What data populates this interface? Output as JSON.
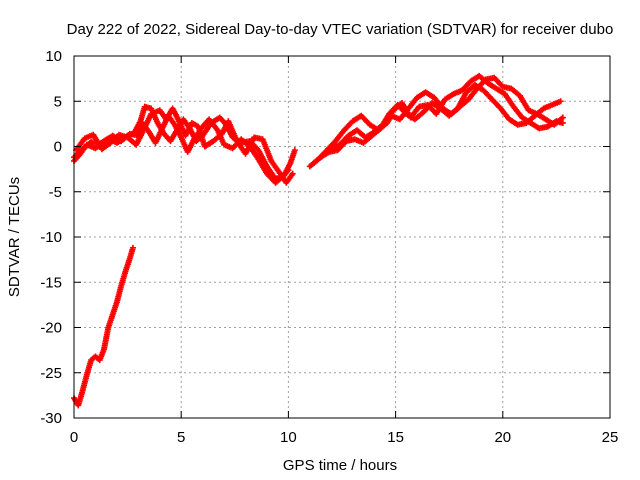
{
  "chart_data": {
    "type": "scatter",
    "title": "Day 222 of 2022, Sidereal Day-to-day VTEC variation (SDTVAR) for receiver dubo",
    "xlabel": "GPS time / hours",
    "ylabel": "SDTVAR / TECUs",
    "xlim": [
      0,
      25
    ],
    "ylim": [
      -30,
      10
    ],
    "x_ticks": [
      0,
      5,
      10,
      15,
      20,
      25
    ],
    "y_ticks": [
      -30,
      -25,
      -20,
      -15,
      -10,
      -5,
      0,
      5,
      10
    ],
    "grid": true,
    "series": [
      {
        "name": "SDTVAR",
        "color": "#ff0000",
        "marker": "+",
        "tracks": [
          [
            [
              0.0,
              -1.2
            ],
            [
              0.4,
              -0.3
            ],
            [
              0.8,
              0.5
            ],
            [
              1.2,
              0.3
            ],
            [
              1.6,
              0.9
            ],
            [
              2.0,
              0.4
            ],
            [
              2.4,
              1.0
            ],
            [
              2.8,
              1.5
            ],
            [
              3.1,
              2.8
            ],
            [
              3.3,
              4.4
            ],
            [
              3.6,
              4.2
            ],
            [
              3.9,
              2.6
            ],
            [
              4.2,
              1.4
            ],
            [
              4.5,
              0.6
            ],
            [
              4.8,
              1.8
            ],
            [
              5.1,
              3.0
            ],
            [
              5.4,
              2.0
            ],
            [
              5.7,
              0.6
            ],
            [
              6.0,
              1.2
            ],
            [
              6.4,
              2.6
            ],
            [
              6.8,
              3.2
            ],
            [
              7.1,
              2.4
            ],
            [
              7.4,
              1.0
            ],
            [
              7.8,
              0.4
            ],
            [
              8.2,
              0.6
            ],
            [
              8.6,
              -0.4
            ],
            [
              9.0,
              -2.2
            ],
            [
              9.4,
              -3.6
            ],
            [
              9.8,
              -3.2
            ],
            [
              10.1,
              -1.8
            ],
            [
              10.3,
              -0.4
            ]
          ],
          [
            [
              0.0,
              -1.6
            ],
            [
              0.3,
              -0.8
            ],
            [
              0.6,
              0.2
            ],
            [
              1.0,
              -0.2
            ],
            [
              1.4,
              0.5
            ],
            [
              1.8,
              1.2
            ],
            [
              2.2,
              0.6
            ],
            [
              2.6,
              1.4
            ],
            [
              3.0,
              1.2
            ],
            [
              3.2,
              2.6
            ],
            [
              3.5,
              1.6
            ],
            [
              3.8,
              0.4
            ],
            [
              4.1,
              1.9
            ],
            [
              4.4,
              3.4
            ],
            [
              4.7,
              2.4
            ],
            [
              5.0,
              1.0
            ],
            [
              5.3,
              -0.6
            ],
            [
              5.6,
              0.8
            ],
            [
              6.0,
              2.2
            ],
            [
              6.3,
              3.0
            ],
            [
              6.7,
              1.8
            ],
            [
              7.0,
              0.2
            ],
            [
              7.4,
              -0.2
            ],
            [
              7.8,
              0.8
            ],
            [
              8.2,
              0.0
            ],
            [
              8.6,
              -1.4
            ],
            [
              9.0,
              -3.0
            ],
            [
              9.4,
              -4.0
            ],
            [
              9.7,
              -3.4
            ],
            [
              10.0,
              -2.6
            ]
          ],
          [
            [
              0.1,
              -0.4
            ],
            [
              0.5,
              0.9
            ],
            [
              0.9,
              1.3
            ],
            [
              1.3,
              -0.3
            ],
            [
              1.7,
              0.4
            ],
            [
              2.1,
              1.3
            ],
            [
              2.5,
              1.0
            ],
            [
              2.9,
              0.2
            ],
            [
              3.2,
              1.6
            ],
            [
              3.6,
              3.6
            ],
            [
              4.0,
              4.0
            ],
            [
              4.3,
              3.0
            ],
            [
              4.6,
              4.2
            ],
            [
              4.9,
              2.8
            ],
            [
              5.2,
              1.2
            ],
            [
              5.5,
              2.6
            ],
            [
              5.8,
              2.2
            ],
            [
              6.1,
              0.0
            ],
            [
              6.5,
              0.6
            ],
            [
              6.9,
              1.4
            ],
            [
              7.2,
              2.8
            ],
            [
              7.6,
              0.6
            ],
            [
              8.0,
              -0.8
            ],
            [
              8.4,
              1.0
            ],
            [
              8.8,
              0.8
            ],
            [
              9.2,
              -1.6
            ],
            [
              9.5,
              -2.6
            ],
            [
              9.9,
              -4.0
            ],
            [
              10.2,
              -3.0
            ]
          ],
          [
            [
              11.0,
              -2.2
            ],
            [
              11.4,
              -1.4
            ],
            [
              11.8,
              -0.4
            ],
            [
              12.2,
              0.6
            ],
            [
              12.6,
              1.8
            ],
            [
              13.0,
              2.8
            ],
            [
              13.4,
              3.4
            ],
            [
              13.8,
              2.4
            ],
            [
              14.2,
              1.8
            ],
            [
              14.6,
              2.6
            ],
            [
              14.8,
              3.4
            ],
            [
              15.2,
              3.0
            ],
            [
              15.6,
              4.2
            ],
            [
              16.0,
              5.4
            ],
            [
              16.4,
              6.0
            ],
            [
              16.8,
              5.4
            ],
            [
              17.2,
              4.2
            ],
            [
              17.6,
              3.6
            ],
            [
              18.0,
              4.4
            ],
            [
              18.4,
              5.2
            ],
            [
              18.8,
              6.4
            ],
            [
              19.2,
              7.4
            ],
            [
              19.6,
              7.6
            ],
            [
              20.0,
              6.6
            ],
            [
              20.4,
              6.4
            ],
            [
              20.8,
              5.6
            ],
            [
              21.2,
              4.0
            ],
            [
              21.6,
              3.6
            ],
            [
              22.0,
              3.0
            ],
            [
              22.4,
              2.4
            ],
            [
              22.8,
              3.2
            ]
          ],
          [
            [
              11.2,
              -1.8
            ],
            [
              11.6,
              -1.0
            ],
            [
              12.0,
              -0.2
            ],
            [
              12.4,
              0.2
            ],
            [
              12.8,
              1.2
            ],
            [
              13.2,
              1.8
            ],
            [
              13.6,
              1.0
            ],
            [
              14.0,
              1.6
            ],
            [
              14.4,
              2.4
            ],
            [
              14.9,
              4.0
            ],
            [
              15.3,
              4.8
            ],
            [
              15.7,
              3.2
            ],
            [
              16.1,
              4.4
            ],
            [
              16.5,
              4.6
            ],
            [
              16.9,
              3.6
            ],
            [
              17.3,
              5.2
            ],
            [
              17.7,
              5.8
            ],
            [
              18.1,
              6.2
            ],
            [
              18.5,
              7.2
            ],
            [
              18.9,
              7.8
            ],
            [
              19.3,
              7.0
            ],
            [
              19.7,
              6.4
            ],
            [
              20.1,
              5.8
            ],
            [
              20.5,
              4.4
            ],
            [
              20.9,
              3.2
            ],
            [
              21.3,
              2.6
            ],
            [
              21.7,
              2.0
            ],
            [
              22.1,
              2.2
            ],
            [
              22.5,
              2.8
            ],
            [
              22.8,
              2.6
            ]
          ],
          [
            [
              11.5,
              -1.2
            ],
            [
              11.9,
              -0.6
            ],
            [
              12.3,
              -0.4
            ],
            [
              12.7,
              0.6
            ],
            [
              13.1,
              0.8
            ],
            [
              13.5,
              0.4
            ],
            [
              13.9,
              1.2
            ],
            [
              14.3,
              2.0
            ],
            [
              14.7,
              3.6
            ],
            [
              15.1,
              4.6
            ],
            [
              15.5,
              3.6
            ],
            [
              15.9,
              3.0
            ],
            [
              16.3,
              3.8
            ],
            [
              16.7,
              4.8
            ],
            [
              17.1,
              4.2
            ],
            [
              17.5,
              3.4
            ],
            [
              17.9,
              4.2
            ],
            [
              18.3,
              6.0
            ],
            [
              18.7,
              6.8
            ],
            [
              19.1,
              6.2
            ],
            [
              19.5,
              5.2
            ],
            [
              19.9,
              4.2
            ],
            [
              20.3,
              3.0
            ],
            [
              20.7,
              2.4
            ],
            [
              21.1,
              2.6
            ],
            [
              21.5,
              3.4
            ],
            [
              21.9,
              4.2
            ],
            [
              22.3,
              4.6
            ],
            [
              22.7,
              5.0
            ]
          ],
          [
            [
              0.0,
              -27.8
            ],
            [
              0.2,
              -28.6
            ],
            [
              0.4,
              -27.0
            ],
            [
              0.6,
              -25.2
            ],
            [
              0.8,
              -23.6
            ],
            [
              1.0,
              -23.2
            ],
            [
              1.2,
              -23.6
            ],
            [
              1.4,
              -22.4
            ],
            [
              1.6,
              -20.0
            ],
            [
              1.8,
              -18.6
            ],
            [
              2.0,
              -17.2
            ],
            [
              2.2,
              -15.4
            ],
            [
              2.4,
              -13.8
            ],
            [
              2.6,
              -12.4
            ],
            [
              2.75,
              -11.2
            ]
          ]
        ]
      }
    ]
  }
}
